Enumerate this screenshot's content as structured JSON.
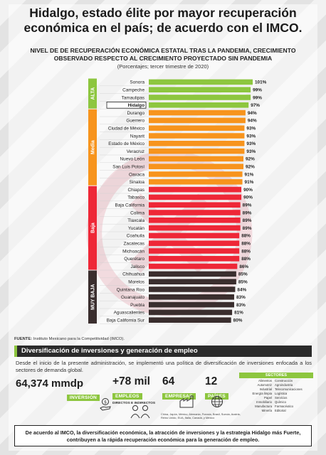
{
  "headline": {
    "line1": "Hidalgo, estado élite por mayor recuperación",
    "line2": "económica en el país; de acuerdo con el IMCO."
  },
  "colors": {
    "alta": "#8dc63f",
    "media": "#f7941d",
    "baja": "#ee2737",
    "muy_baja": "#3a2e2e",
    "green_accent": "#8dc63f"
  },
  "chart_data": {
    "type": "bar",
    "orientation": "horizontal",
    "title_line1": "NIVEL DE DE RECUPERACIÓN ECONÓMICA ESTATAL TRAS LA PANDEMIA, CRECIMIENTO",
    "title_line2": "OBSERVADO RESPECTO AL CRECIMIENTO PROYECTADO SIN PANDEMIA",
    "subtitle": "(Porcentajes; tercer trimestre de 2020)",
    "value_suffix": "%",
    "highlight": "Hidalgo",
    "groups": [
      {
        "name": "ALTA",
        "color_key": "alta",
        "categories": [
          "Sonora",
          "Campeche",
          "Tamaulipas",
          "Hidalgo"
        ],
        "values": [
          101,
          99,
          99,
          97
        ]
      },
      {
        "name": "Media",
        "color_key": "media",
        "categories": [
          "Durango",
          "Guerrero",
          "Ciudad de México",
          "Nayarit",
          "Estado de México",
          "Veracruz",
          "Nuevo León",
          "San Luis Potosí",
          "Oaxaca",
          "Sinaloa"
        ],
        "values": [
          94,
          94,
          93,
          93,
          93,
          93,
          92,
          92,
          91,
          91
        ]
      },
      {
        "name": "Baja",
        "color_key": "baja",
        "categories": [
          "Chiapas",
          "Tabasco",
          "Baja California",
          "Colima",
          "Tlaxcala",
          "Yucatán",
          "Coahuila",
          "Zacatecas",
          "Michoacán",
          "Querétaro",
          "Jalisco"
        ],
        "values": [
          90,
          90,
          89,
          89,
          89,
          89,
          88,
          88,
          88,
          88,
          86
        ]
      },
      {
        "name": "MUY BAJA",
        "color_key": "muy_baja",
        "categories": [
          "Chihuahua",
          "Morelos",
          "Quintana Roo",
          "Guanajuato",
          "Puebla",
          "Aguascalientes",
          "Baja California Sur"
        ],
        "values": [
          85,
          85,
          84,
          83,
          83,
          81,
          80
        ]
      }
    ]
  },
  "source": {
    "label": "FUENTE:",
    "text": " Instituto Mexicano para la Competitividad (IMCO)."
  },
  "section": {
    "title": "Diversificación de inversiones y generación de empleo",
    "intro": "Desde el inicio de la presente administración, se implementó una política de diversificación de inversiones enfocada a los sectores de demanda global."
  },
  "metrics": {
    "investment": {
      "value": "64,374 mmdp",
      "label": "INVERSIÓN"
    },
    "jobs": {
      "value": "+78 mil",
      "label": "EMPLEOS",
      "sub": "DIRECTOS E INDIRECTOS"
    },
    "companies": {
      "value": "64",
      "label": "EMPRESAS"
    },
    "countries": {
      "value": "12",
      "label": "PAÍSES",
      "list": "China, Japón, México, Alemania, Francia, Brasil, Suecia, Austria, Reino Unido, EUA, Italia, Canadá, y México"
    }
  },
  "sectors": {
    "title": "SECTORES",
    "rows": [
      [
        "Alimentos",
        "Construcción"
      ],
      [
        "Automotriz",
        "Agroindustria"
      ],
      [
        "Industrial",
        "Telecomunicaciones"
      ],
      [
        "Energía limpia",
        "Logística"
      ],
      [
        "Papel",
        "Servicios"
      ],
      [
        "Inmobiliario",
        "Químico"
      ],
      [
        "Manufactura",
        "Farmacéutico"
      ],
      [
        "Minería",
        "Editorial"
      ]
    ]
  },
  "conclusion": {
    "line1": "De acuerdo al IMCO, la diversificación económica, la atracción de inversiones y la estrategia Hidalgo más Fuerte,",
    "line2": "contribuyen a la rápida recuperación económica para la generación de empleo."
  }
}
